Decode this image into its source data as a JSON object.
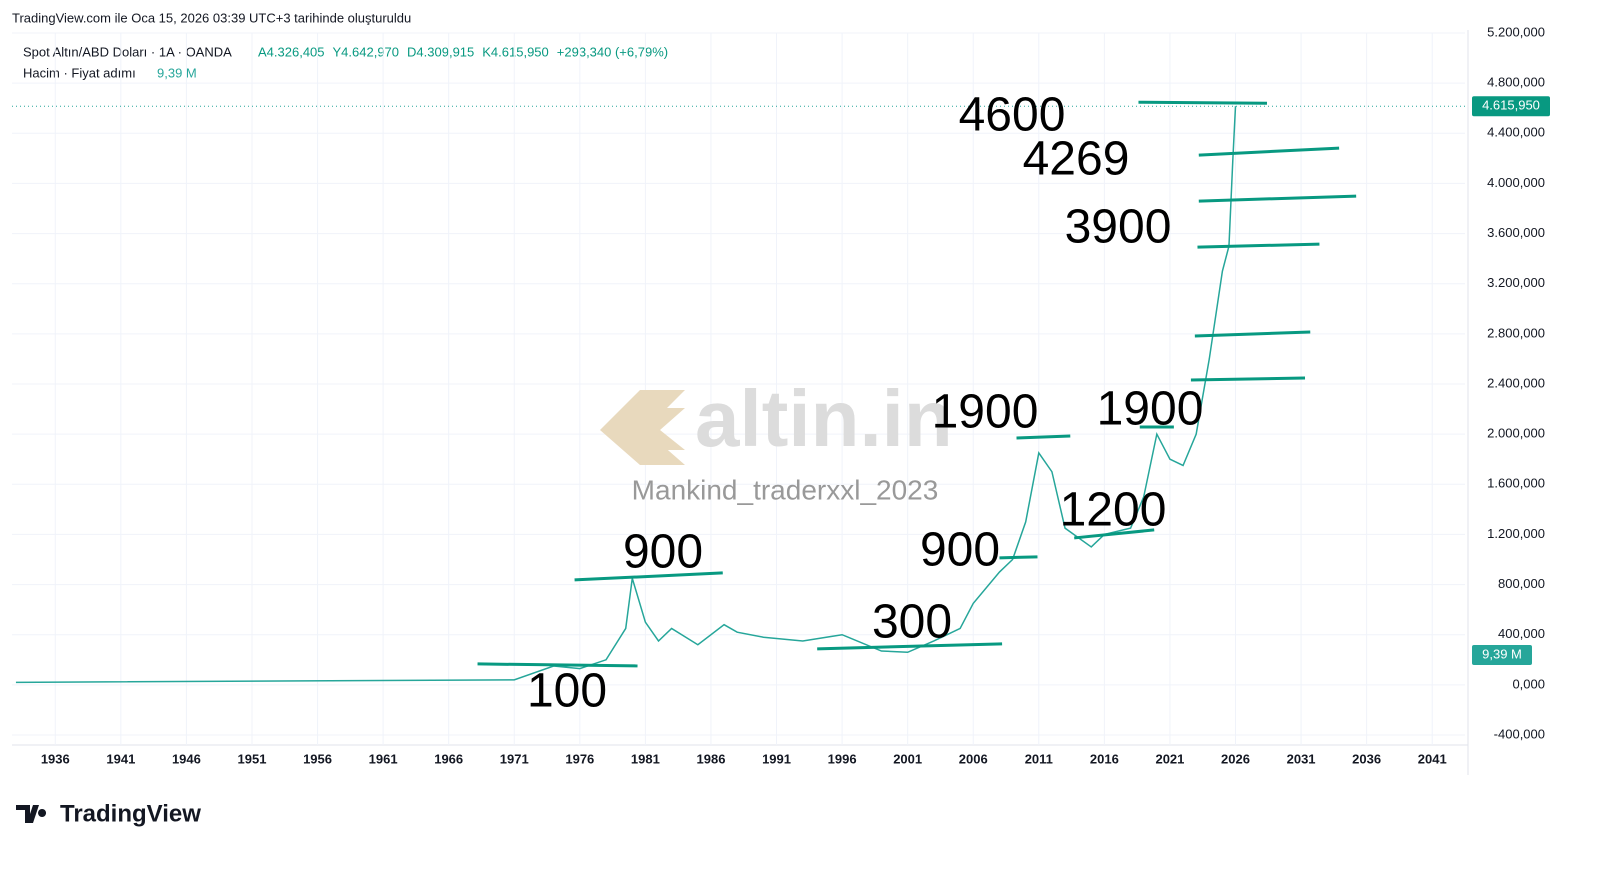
{
  "header": "TradingView.com ile Oca 15, 2026 03:39 UTC+3 tarihinde oluşturuldu",
  "footer": "TradingView",
  "chart_data": {
    "type": "line",
    "title": "Spot Altın/ABD Doları · 1A · OANDA",
    "ohlc": [
      "A4.326,405",
      "Y4.642,970",
      "D4.309,915",
      "K4.615,950"
    ],
    "change": "+293,340 (+6,79%)",
    "volume_title": "Hacim · Fiyat adımı",
    "volume_value": "9,39 M",
    "last_price": {
      "value": 4615.95,
      "label": "4.615,950"
    },
    "watermark": [
      "altin.in",
      "Mankind_traderxxl_2023"
    ],
    "xlim": [
      1932.7,
      2043.5
    ],
    "xticks": [
      1936,
      1941,
      1946,
      1951,
      1956,
      1961,
      1966,
      1971,
      1976,
      1981,
      1986,
      1991,
      1996,
      2001,
      2006,
      2011,
      2016,
      2021,
      2026,
      2031,
      2036,
      2041
    ],
    "ylim": [
      -400,
      5200
    ],
    "yticks": [
      {
        "value": -400,
        "label": "-400,000"
      },
      {
        "value": 0,
        "label": "0,000"
      },
      {
        "value": 400,
        "label": "400,000"
      },
      {
        "value": 800,
        "label": "800,000"
      },
      {
        "value": 1200,
        "label": "1.200,000"
      },
      {
        "value": 1600,
        "label": "1.600,000"
      },
      {
        "value": 2000,
        "label": "2.000,000"
      },
      {
        "value": 2400,
        "label": "2.400,000"
      },
      {
        "value": 2800,
        "label": "2.800,000"
      },
      {
        "value": 3200,
        "label": "3.200,000"
      },
      {
        "value": 3600,
        "label": "3.600,000"
      },
      {
        "value": 4000,
        "label": "4.000,000"
      },
      {
        "value": 4400,
        "label": "4.400,000"
      },
      {
        "value": 4800,
        "label": "4.800,000"
      },
      {
        "value": 5200,
        "label": "5.200,000"
      }
    ],
    "grid": true,
    "x": [
      1933,
      1971,
      1974,
      1976,
      1978,
      1979.5,
      1980,
      1981,
      1982,
      1983,
      1985,
      1987,
      1988,
      1990,
      1993,
      1996,
      1999,
      2001,
      2003,
      2005,
      2006,
      2008,
      2009,
      2010,
      2011,
      2012,
      2013,
      2015,
      2016,
      2018,
      2019,
      2020,
      2021,
      2022,
      2023,
      2024,
      2025,
      2025.5,
      2025.8,
      2026
    ],
    "series": [
      {
        "name": "Spot Altın/ABD Doları",
        "color": "#26a69a",
        "values": [
          20,
          40,
          150,
          130,
          200,
          450,
          850,
          500,
          350,
          450,
          320,
          480,
          420,
          380,
          350,
          400,
          270,
          260,
          350,
          450,
          650,
          900,
          1000,
          1300,
          1850,
          1700,
          1250,
          1100,
          1200,
          1250,
          1500,
          2000,
          1800,
          1750,
          2000,
          2600,
          3300,
          3500,
          4200,
          4616
        ]
      }
    ],
    "levels": [
      {
        "x": [
          1968.2,
          1980.4
        ],
        "values": [
          167,
          151
        ]
      },
      {
        "x": [
          1975.6,
          1986.9
        ],
        "values": [
          837,
          893
        ]
      },
      {
        "x": [
          1994.1,
          2008.2
        ],
        "values": [
          287,
          327
        ]
      },
      {
        "x": [
          2008.0,
          2010.9
        ],
        "values": [
          1013,
          1021
        ]
      },
      {
        "x": [
          2009.3,
          2013.4
        ],
        "values": [
          1969,
          1985
        ]
      },
      {
        "x": [
          2013.7,
          2019.8
        ],
        "values": [
          1172,
          1236
        ]
      },
      {
        "x": [
          2018.7,
          2021.3
        ],
        "values": [
          2057,
          2057
        ]
      },
      {
        "x": [
          2022.6,
          2031.3
        ],
        "values": [
          2432,
          2448
        ]
      },
      {
        "x": [
          2022.9,
          2031.7
        ],
        "values": [
          2783,
          2815
        ]
      },
      {
        "x": [
          2023.1,
          2032.4
        ],
        "values": [
          3492,
          3516
        ]
      },
      {
        "x": [
          2023.2,
          2035.2
        ],
        "values": [
          3859,
          3899
        ]
      },
      {
        "x": [
          2023.2,
          2033.9
        ],
        "values": [
          4226,
          4282
        ]
      },
      {
        "x": [
          2018.6,
          2028.4
        ],
        "values": [
          4648,
          4640
        ]
      }
    ],
    "annotations": [
      "4600",
      "4269",
      "3900",
      "1900",
      "1900",
      "1200",
      "900",
      "900",
      "300",
      "100"
    ]
  }
}
